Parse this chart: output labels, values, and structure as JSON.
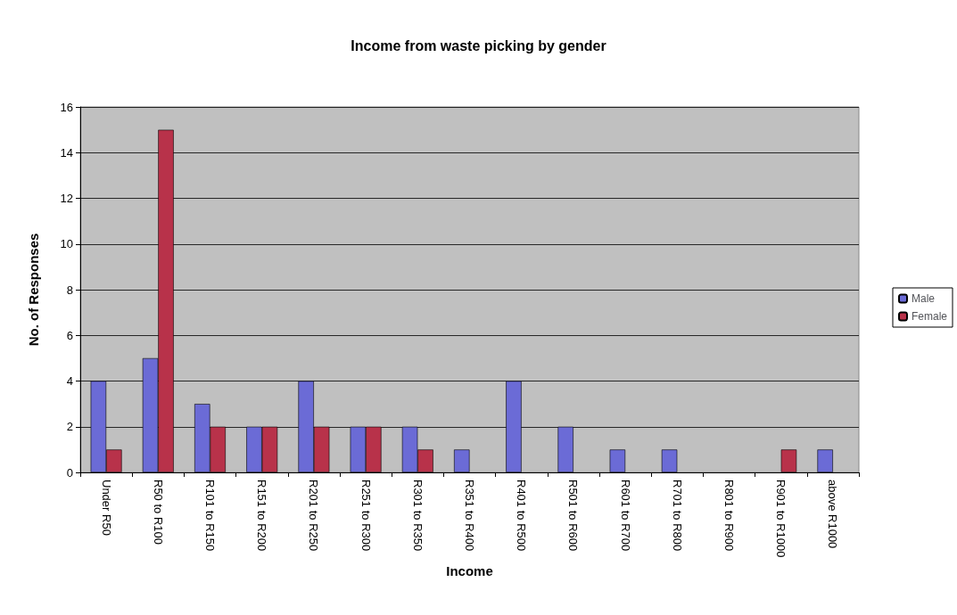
{
  "chart_data": {
    "type": "bar",
    "title": "Income from waste picking by gender",
    "xlabel": "Income",
    "ylabel": "No. of Responses",
    "categories": [
      "Under R50",
      "R50 to R100",
      "R101 to R150",
      "R151 to R200",
      "R201 to R250",
      "R251 to R300",
      "R301 to R350",
      "R351 to R400",
      "R401 to R500",
      "R501 to R600",
      "R601 to R700",
      "R701 to R800",
      "R801 to R900",
      "R901 to R1000",
      "above R1000"
    ],
    "series": [
      {
        "name": "Male",
        "color": "#6b6bd6",
        "values": [
          4,
          5,
          3,
          2,
          4,
          2,
          2,
          1,
          4,
          2,
          1,
          1,
          0,
          0,
          1
        ]
      },
      {
        "name": "Female",
        "color": "#b8324a",
        "values": [
          1,
          15,
          2,
          2,
          2,
          2,
          1,
          0,
          0,
          0,
          0,
          0,
          0,
          1,
          0
        ]
      }
    ],
    "ylim": [
      0,
      16
    ],
    "yticks": [
      0,
      2,
      4,
      6,
      8,
      10,
      12,
      14,
      16
    ],
    "grid": "y",
    "legend": "right"
  }
}
